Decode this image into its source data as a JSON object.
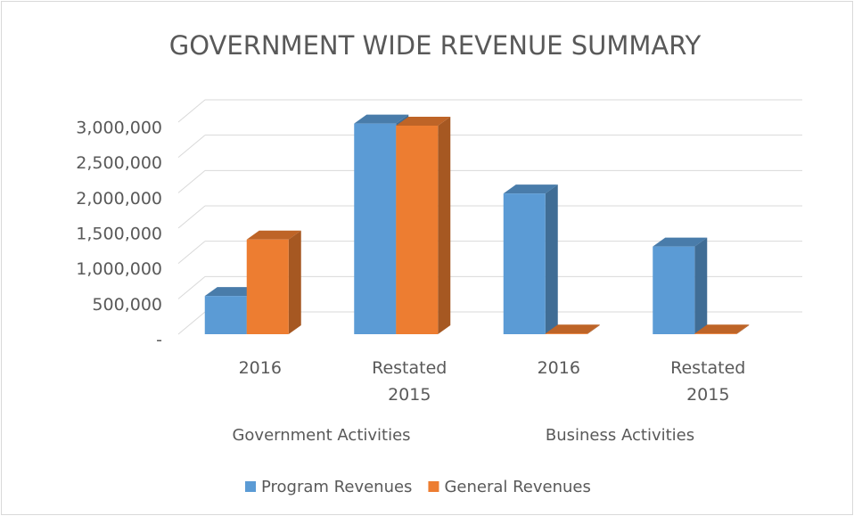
{
  "chart_data": {
    "type": "bar3d",
    "title": "GOVERNMENT WIDE REVENUE SUMMARY",
    "categories": [
      "2016",
      "Restated 2015",
      "2016",
      "Restated 2015"
    ],
    "category_groups": [
      "Government Activities",
      "Business Activities"
    ],
    "series": [
      {
        "name": "Program Revenues",
        "color": "#5b9bd5",
        "values": [
          540000,
          2980000,
          1990000,
          1240000
        ]
      },
      {
        "name": "General Revenues",
        "color": "#ed7d31",
        "values": [
          1340000,
          2950000,
          10000,
          10000
        ]
      }
    ],
    "ylim": [
      0,
      3000000
    ],
    "yticks": [
      {
        "value": 0,
        "label": "-"
      },
      {
        "value": 500000,
        "label": "500,000"
      },
      {
        "value": 1000000,
        "label": "1,000,000"
      },
      {
        "value": 1500000,
        "label": "1,500,000"
      },
      {
        "value": 2000000,
        "label": "2,000,000"
      },
      {
        "value": 2500000,
        "label": "2,500,000"
      },
      {
        "value": 3000000,
        "label": "3,000,000"
      }
    ],
    "grid": true,
    "legend": "bottom"
  }
}
